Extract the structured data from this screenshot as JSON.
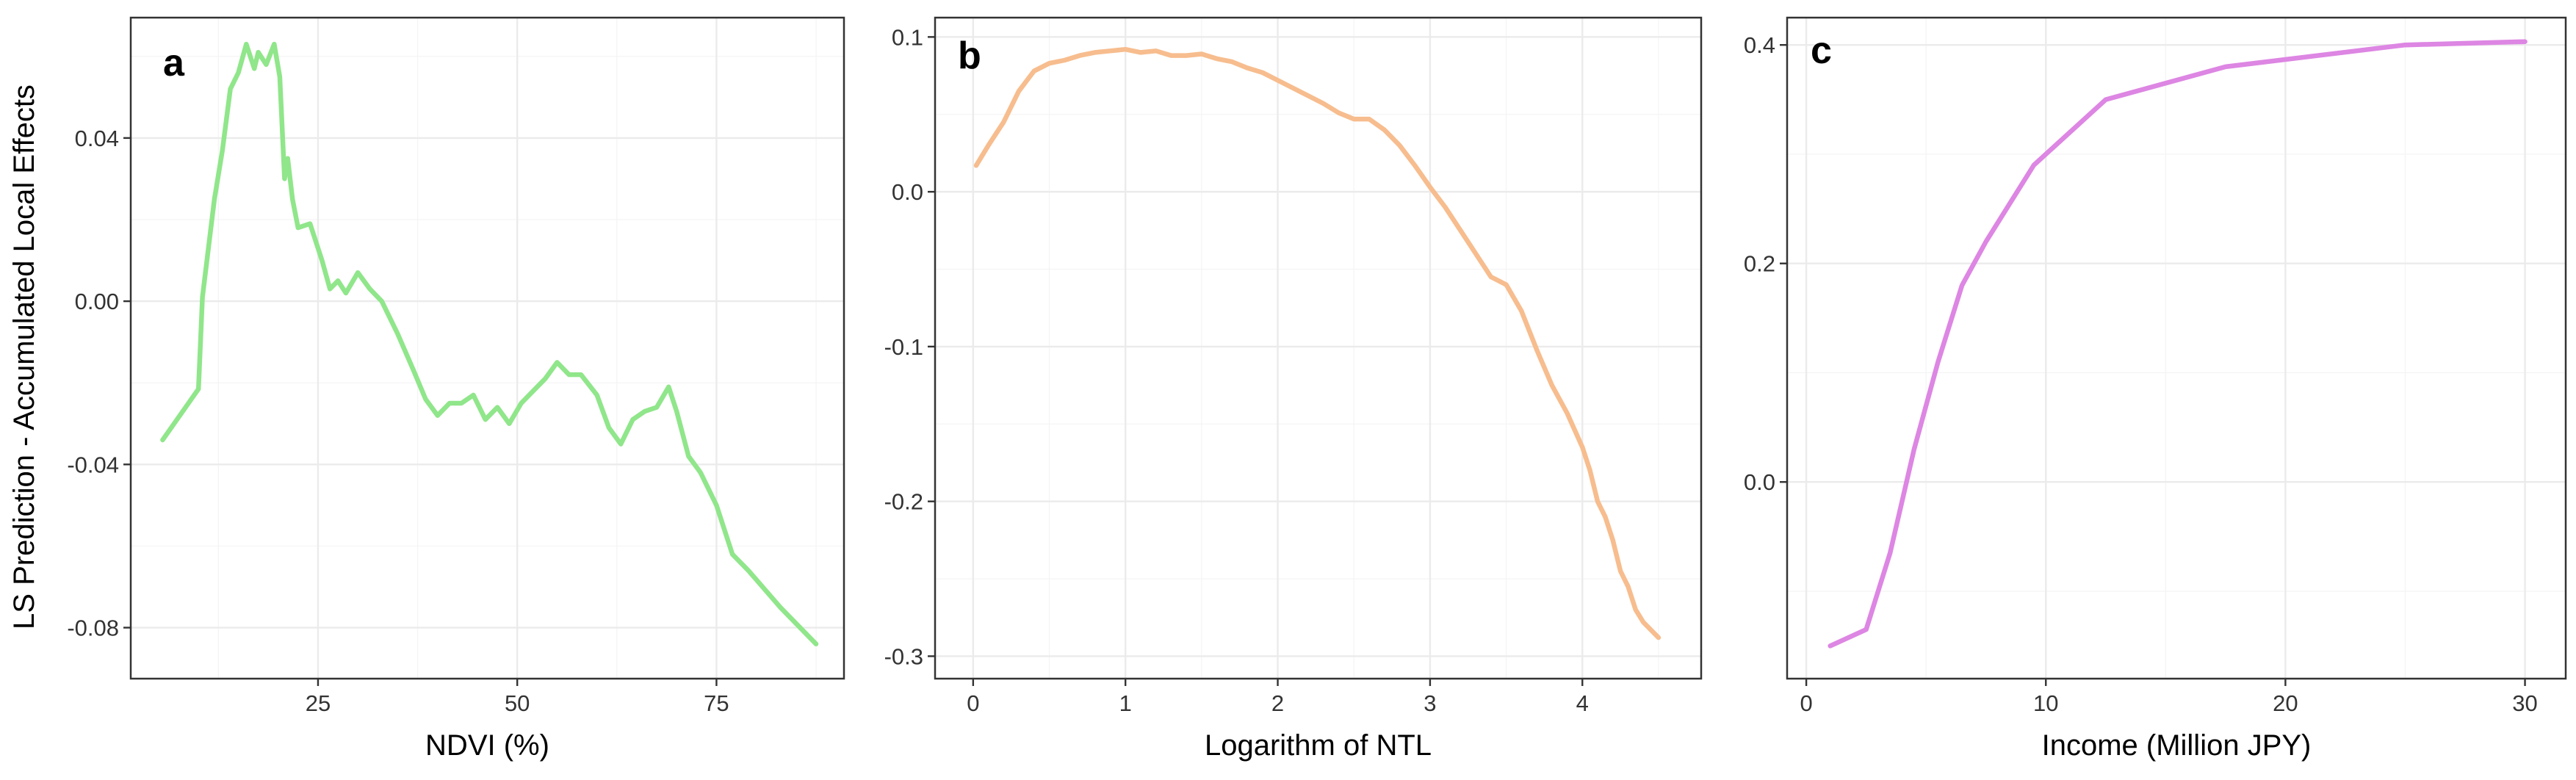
{
  "y_axis_title": "LS Prediction - Accumulated Local Effects",
  "colors": {
    "a": "#90e68a",
    "b": "#f7bd8e",
    "c": "#dd86e3"
  },
  "chart_data": [
    {
      "type": "line",
      "panel": "a",
      "xlabel": "NDVI (%)",
      "ylabel": "LS Prediction - Accumulated Local Effects",
      "xlim": [
        1.5,
        91
      ],
      "ylim": [
        -0.0925,
        0.0695
      ],
      "xticks": [
        25,
        50,
        75
      ],
      "xtick_labels": [
        "25",
        "50",
        "75"
      ],
      "yticks": [
        -0.08,
        -0.04,
        0.0,
        0.04
      ],
      "ytick_labels": [
        "-0.08",
        "-0.04",
        "0.00",
        "0.04"
      ],
      "grid": true,
      "series": [
        {
          "x": [
            5.5,
            10,
            10.5,
            12,
            13,
            14,
            15,
            16,
            17,
            17.5,
            18.5,
            19.5,
            20.2,
            20.8,
            21.2,
            21.8,
            22.5,
            24,
            25.5,
            26.5,
            27.5,
            28.5,
            30,
            31.5,
            33,
            35,
            37,
            38.5,
            40,
            41.5,
            43,
            44.5,
            46,
            47.5,
            49,
            50.5,
            52,
            53.5,
            55,
            56.5,
            58,
            60,
            61.5,
            63,
            64.5,
            66,
            67.5,
            69,
            70,
            71.5,
            73,
            75,
            77,
            79,
            83,
            87.5
          ],
          "y": [
            -0.034,
            -0.0215,
            0.001,
            0.025,
            0.037,
            0.052,
            0.056,
            0.063,
            0.057,
            0.061,
            0.058,
            0.063,
            0.055,
            0.03,
            0.035,
            0.025,
            0.018,
            0.019,
            0.01,
            0.003,
            0.005,
            0.002,
            0.007,
            0.003,
            0.0,
            -0.008,
            -0.017,
            -0.024,
            -0.028,
            -0.025,
            -0.025,
            -0.023,
            -0.029,
            -0.026,
            -0.03,
            -0.025,
            -0.022,
            -0.019,
            -0.015,
            -0.018,
            -0.018,
            -0.023,
            -0.031,
            -0.035,
            -0.029,
            -0.027,
            -0.026,
            -0.021,
            -0.027,
            -0.038,
            -0.042,
            -0.05,
            -0.062,
            -0.066,
            -0.075,
            -0.084
          ]
        }
      ]
    },
    {
      "type": "line",
      "panel": "b",
      "xlabel": "Logarithm of NTL",
      "ylabel": "",
      "xlim": [
        -0.25,
        4.78
      ],
      "ylim": [
        -0.3145,
        0.1125
      ],
      "xticks": [
        0,
        1,
        2,
        3,
        4
      ],
      "xtick_labels": [
        "0",
        "1",
        "2",
        "3",
        "4"
      ],
      "yticks": [
        -0.3,
        -0.2,
        -0.1,
        0.0,
        0.1
      ],
      "ytick_labels": [
        "-0.3",
        "-0.2",
        "-0.1",
        "0.0",
        "0.1"
      ],
      "grid": true,
      "series": [
        {
          "x": [
            0.02,
            0.1,
            0.2,
            0.3,
            0.4,
            0.5,
            0.6,
            0.7,
            0.8,
            0.9,
            1.0,
            1.1,
            1.2,
            1.3,
            1.4,
            1.5,
            1.6,
            1.7,
            1.8,
            1.9,
            2.0,
            2.1,
            2.2,
            2.3,
            2.4,
            2.5,
            2.6,
            2.7,
            2.8,
            2.9,
            3.0,
            3.1,
            3.2,
            3.3,
            3.4,
            3.5,
            3.6,
            3.7,
            3.8,
            3.9,
            4.0,
            4.05,
            4.1,
            4.15,
            4.2,
            4.25,
            4.3,
            4.35,
            4.4,
            4.5
          ],
          "y": [
            0.017,
            0.03,
            0.045,
            0.065,
            0.078,
            0.083,
            0.085,
            0.088,
            0.09,
            0.091,
            0.092,
            0.09,
            0.091,
            0.088,
            0.088,
            0.089,
            0.086,
            0.084,
            0.08,
            0.077,
            0.072,
            0.067,
            0.062,
            0.057,
            0.051,
            0.047,
            0.047,
            0.04,
            0.03,
            0.017,
            0.003,
            -0.01,
            -0.025,
            -0.04,
            -0.055,
            -0.06,
            -0.077,
            -0.102,
            -0.125,
            -0.143,
            -0.165,
            -0.18,
            -0.2,
            -0.21,
            -0.225,
            -0.245,
            -0.255,
            -0.27,
            -0.278,
            -0.288
          ]
        }
      ]
    },
    {
      "type": "line",
      "panel": "c",
      "xlabel": "Income (Million JPY)",
      "ylabel": "",
      "xlim": [
        -0.8,
        31.7
      ],
      "ylim": [
        -0.18,
        0.425
      ],
      "xticks": [
        0,
        10,
        20,
        30
      ],
      "xtick_labels": [
        "0",
        "10",
        "20",
        "30"
      ],
      "yticks": [
        0.0,
        0.2,
        0.4
      ],
      "ytick_labels": [
        "0.0",
        "0.2",
        "0.4"
      ],
      "grid": true,
      "series": [
        {
          "x": [
            1,
            2.5,
            3.5,
            4.5,
            5.5,
            6.5,
            7.5,
            8.5,
            9.5,
            12.5,
            17.5,
            25,
            30
          ],
          "y": [
            -0.15,
            -0.135,
            -0.065,
            0.03,
            0.11,
            0.18,
            0.22,
            0.255,
            0.29,
            0.35,
            0.38,
            0.4,
            0.403
          ]
        }
      ]
    }
  ]
}
